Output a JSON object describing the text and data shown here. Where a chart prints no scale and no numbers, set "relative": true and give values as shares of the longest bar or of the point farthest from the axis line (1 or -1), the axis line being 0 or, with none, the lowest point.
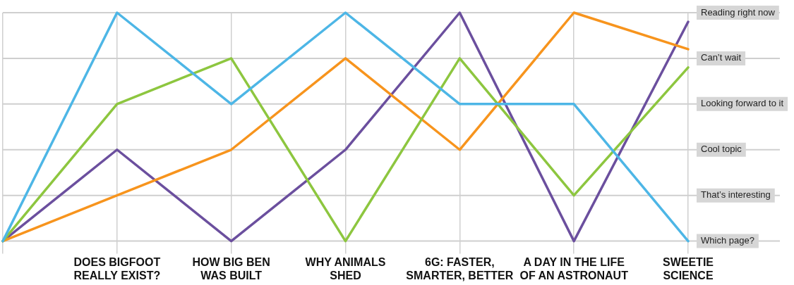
{
  "chart_data": {
    "type": "line",
    "relative": true,
    "categories": [
      null,
      "DOES BIGFOOT REALLY EXIST?",
      "HOW BIG BEN WAS BUILT",
      "WHY ANIMALS SHED",
      "6G: FASTER, SMARTER, BETTER",
      "A DAY IN THE LIFE OF AN ASTRONAUT",
      "SWEETIE SCIENCE"
    ],
    "annotations": [
      "Which page?",
      "That’s interesting",
      "Cool topic",
      "Looking forward to it",
      "Can’t wait",
      "Reading right now"
    ],
    "series": [
      {
        "color": "#4db6e6",
        "values": [
          0,
          1,
          0.6,
          1,
          0.6,
          0.6,
          0
        ]
      },
      {
        "color": "#8dc63f",
        "values": [
          0,
          0.6,
          0.8,
          0,
          0.8,
          0.2,
          0.76
        ]
      },
      {
        "color": "#f7941d",
        "values": [
          0,
          0.2,
          0.4,
          0.8,
          0.4,
          1,
          0.84
        ]
      },
      {
        "color": "#6b4f9e",
        "values": [
          0,
          0.4,
          0,
          0.4,
          1,
          0,
          0.96
        ]
      }
    ],
    "grid": true,
    "legend": false,
    "marker": "none",
    "line_style": "solid"
  }
}
